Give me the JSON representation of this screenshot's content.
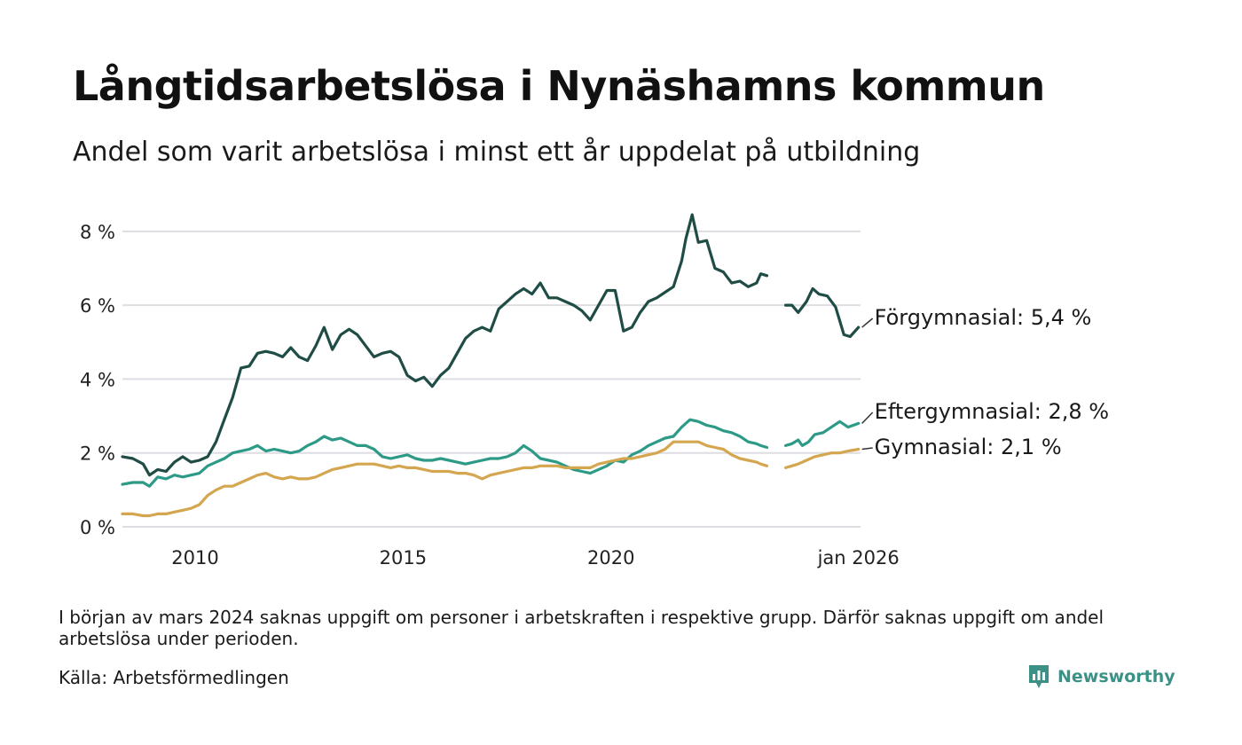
{
  "chart_data": {
    "type": "line",
    "title": "Långtidsarbetslösa i Nynäshamns kommun",
    "subtitle": "Andel som varit arbetslösa i minst ett år uppdelat på utbildning",
    "xlabel": "",
    "ylabel": "",
    "x_unit": "year",
    "x_range": [
      2008.25,
      2026.0
    ],
    "ylim": [
      0,
      8.5
    ],
    "y_ticks": [
      {
        "value": 0,
        "label": "0 %"
      },
      {
        "value": 2,
        "label": "2 %"
      },
      {
        "value": 4,
        "label": "4 %"
      },
      {
        "value": 6,
        "label": "6 %"
      },
      {
        "value": 8,
        "label": "8 %"
      }
    ],
    "x_ticks": [
      {
        "value": 2010,
        "label": "2010"
      },
      {
        "value": 2015,
        "label": "2015"
      },
      {
        "value": 2020,
        "label": "2020"
      },
      {
        "value": 2025.95,
        "label": "jan 2026"
      }
    ],
    "grid": true,
    "legend": "end labels at right",
    "gap_note": "missing data early 2024",
    "series": [
      {
        "name": "Förgymnasial",
        "end_label": "Förgymnasial: 5,4 %",
        "color": "#1f4d46",
        "points": [
          [
            2008.25,
            1.9
          ],
          [
            2008.5,
            1.85
          ],
          [
            2008.75,
            1.7
          ],
          [
            2008.9,
            1.4
          ],
          [
            2009.1,
            1.55
          ],
          [
            2009.3,
            1.5
          ],
          [
            2009.5,
            1.75
          ],
          [
            2009.7,
            1.9
          ],
          [
            2009.9,
            1.75
          ],
          [
            2010.1,
            1.8
          ],
          [
            2010.3,
            1.9
          ],
          [
            2010.5,
            2.3
          ],
          [
            2010.7,
            2.9
          ],
          [
            2010.9,
            3.5
          ],
          [
            2011.1,
            4.3
          ],
          [
            2011.3,
            4.35
          ],
          [
            2011.5,
            4.7
          ],
          [
            2011.7,
            4.75
          ],
          [
            2011.9,
            4.7
          ],
          [
            2012.1,
            4.6
          ],
          [
            2012.3,
            4.85
          ],
          [
            2012.5,
            4.6
          ],
          [
            2012.7,
            4.5
          ],
          [
            2012.9,
            4.9
          ],
          [
            2013.1,
            5.4
          ],
          [
            2013.3,
            4.8
          ],
          [
            2013.5,
            5.2
          ],
          [
            2013.7,
            5.35
          ],
          [
            2013.9,
            5.2
          ],
          [
            2014.1,
            4.9
          ],
          [
            2014.3,
            4.6
          ],
          [
            2014.5,
            4.7
          ],
          [
            2014.7,
            4.75
          ],
          [
            2014.9,
            4.6
          ],
          [
            2015.1,
            4.1
          ],
          [
            2015.3,
            3.95
          ],
          [
            2015.5,
            4.05
          ],
          [
            2015.7,
            3.8
          ],
          [
            2015.9,
            4.1
          ],
          [
            2016.1,
            4.3
          ],
          [
            2016.3,
            4.7
          ],
          [
            2016.5,
            5.1
          ],
          [
            2016.7,
            5.3
          ],
          [
            2016.9,
            5.4
          ],
          [
            2017.1,
            5.3
          ],
          [
            2017.3,
            5.9
          ],
          [
            2017.5,
            6.1
          ],
          [
            2017.7,
            6.3
          ],
          [
            2017.9,
            6.45
          ],
          [
            2018.1,
            6.3
          ],
          [
            2018.3,
            6.6
          ],
          [
            2018.5,
            6.2
          ],
          [
            2018.7,
            6.2
          ],
          [
            2018.9,
            6.1
          ],
          [
            2019.1,
            6.0
          ],
          [
            2019.3,
            5.85
          ],
          [
            2019.5,
            5.6
          ],
          [
            2019.7,
            6.0
          ],
          [
            2019.9,
            6.4
          ],
          [
            2020.1,
            6.4
          ],
          [
            2020.3,
            5.3
          ],
          [
            2020.5,
            5.4
          ],
          [
            2020.7,
            5.8
          ],
          [
            2020.9,
            6.1
          ],
          [
            2021.1,
            6.2
          ],
          [
            2021.3,
            6.35
          ],
          [
            2021.5,
            6.5
          ],
          [
            2021.7,
            7.2
          ],
          [
            2021.8,
            7.8
          ],
          [
            2021.95,
            8.45
          ],
          [
            2022.1,
            7.7
          ],
          [
            2022.3,
            7.75
          ],
          [
            2022.5,
            7.0
          ],
          [
            2022.7,
            6.9
          ],
          [
            2022.9,
            6.6
          ],
          [
            2023.1,
            6.65
          ],
          [
            2023.3,
            6.5
          ],
          [
            2023.5,
            6.6
          ],
          [
            2023.6,
            6.85
          ],
          [
            2023.75,
            6.8
          ],
          null,
          [
            2024.2,
            6.0
          ],
          [
            2024.35,
            6.0
          ],
          [
            2024.5,
            5.8
          ],
          [
            2024.7,
            6.1
          ],
          [
            2024.85,
            6.45
          ],
          [
            2025.0,
            6.3
          ],
          [
            2025.2,
            6.25
          ],
          [
            2025.4,
            5.95
          ],
          [
            2025.6,
            5.2
          ],
          [
            2025.75,
            5.15
          ],
          [
            2025.95,
            5.4
          ]
        ]
      },
      {
        "name": "Eftergymnasial",
        "end_label": "Eftergymnasial: 2,8 %",
        "color": "#2d9a88",
        "points": [
          [
            2008.25,
            1.15
          ],
          [
            2008.5,
            1.2
          ],
          [
            2008.75,
            1.2
          ],
          [
            2008.9,
            1.1
          ],
          [
            2009.1,
            1.35
          ],
          [
            2009.3,
            1.3
          ],
          [
            2009.5,
            1.4
          ],
          [
            2009.7,
            1.35
          ],
          [
            2009.9,
            1.4
          ],
          [
            2010.1,
            1.45
          ],
          [
            2010.3,
            1.65
          ],
          [
            2010.5,
            1.75
          ],
          [
            2010.7,
            1.85
          ],
          [
            2010.9,
            2.0
          ],
          [
            2011.1,
            2.05
          ],
          [
            2011.3,
            2.1
          ],
          [
            2011.5,
            2.2
          ],
          [
            2011.7,
            2.05
          ],
          [
            2011.9,
            2.1
          ],
          [
            2012.1,
            2.05
          ],
          [
            2012.3,
            2.0
          ],
          [
            2012.5,
            2.05
          ],
          [
            2012.7,
            2.2
          ],
          [
            2012.9,
            2.3
          ],
          [
            2013.1,
            2.45
          ],
          [
            2013.3,
            2.35
          ],
          [
            2013.5,
            2.4
          ],
          [
            2013.7,
            2.3
          ],
          [
            2013.9,
            2.2
          ],
          [
            2014.1,
            2.2
          ],
          [
            2014.3,
            2.1
          ],
          [
            2014.5,
            1.9
          ],
          [
            2014.7,
            1.85
          ],
          [
            2014.9,
            1.9
          ],
          [
            2015.1,
            1.95
          ],
          [
            2015.3,
            1.85
          ],
          [
            2015.5,
            1.8
          ],
          [
            2015.7,
            1.8
          ],
          [
            2015.9,
            1.85
          ],
          [
            2016.1,
            1.8
          ],
          [
            2016.3,
            1.75
          ],
          [
            2016.5,
            1.7
          ],
          [
            2016.7,
            1.75
          ],
          [
            2016.9,
            1.8
          ],
          [
            2017.1,
            1.85
          ],
          [
            2017.3,
            1.85
          ],
          [
            2017.5,
            1.9
          ],
          [
            2017.7,
            2.0
          ],
          [
            2017.9,
            2.2
          ],
          [
            2018.1,
            2.05
          ],
          [
            2018.3,
            1.85
          ],
          [
            2018.5,
            1.8
          ],
          [
            2018.7,
            1.75
          ],
          [
            2018.9,
            1.65
          ],
          [
            2019.1,
            1.55
          ],
          [
            2019.3,
            1.5
          ],
          [
            2019.5,
            1.45
          ],
          [
            2019.7,
            1.55
          ],
          [
            2019.9,
            1.65
          ],
          [
            2020.1,
            1.8
          ],
          [
            2020.3,
            1.75
          ],
          [
            2020.5,
            1.95
          ],
          [
            2020.7,
            2.05
          ],
          [
            2020.9,
            2.2
          ],
          [
            2021.1,
            2.3
          ],
          [
            2021.3,
            2.4
          ],
          [
            2021.5,
            2.45
          ],
          [
            2021.7,
            2.7
          ],
          [
            2021.9,
            2.9
          ],
          [
            2022.1,
            2.85
          ],
          [
            2022.3,
            2.75
          ],
          [
            2022.5,
            2.7
          ],
          [
            2022.7,
            2.6
          ],
          [
            2022.9,
            2.55
          ],
          [
            2023.1,
            2.45
          ],
          [
            2023.3,
            2.3
          ],
          [
            2023.5,
            2.25
          ],
          [
            2023.6,
            2.2
          ],
          [
            2023.75,
            2.15
          ],
          null,
          [
            2024.2,
            2.2
          ],
          [
            2024.35,
            2.25
          ],
          [
            2024.5,
            2.35
          ],
          [
            2024.6,
            2.2
          ],
          [
            2024.75,
            2.3
          ],
          [
            2024.9,
            2.5
          ],
          [
            2025.1,
            2.55
          ],
          [
            2025.3,
            2.7
          ],
          [
            2025.5,
            2.85
          ],
          [
            2025.7,
            2.7
          ],
          [
            2025.95,
            2.8
          ]
        ]
      },
      {
        "name": "Gymnasial",
        "end_label": "Gymnasial: 2,1 %",
        "color": "#d4a64f",
        "points": [
          [
            2008.25,
            0.35
          ],
          [
            2008.5,
            0.35
          ],
          [
            2008.75,
            0.3
          ],
          [
            2008.9,
            0.3
          ],
          [
            2009.1,
            0.35
          ],
          [
            2009.3,
            0.35
          ],
          [
            2009.5,
            0.4
          ],
          [
            2009.7,
            0.45
          ],
          [
            2009.9,
            0.5
          ],
          [
            2010.1,
            0.6
          ],
          [
            2010.3,
            0.85
          ],
          [
            2010.5,
            1.0
          ],
          [
            2010.7,
            1.1
          ],
          [
            2010.9,
            1.1
          ],
          [
            2011.1,
            1.2
          ],
          [
            2011.3,
            1.3
          ],
          [
            2011.5,
            1.4
          ],
          [
            2011.7,
            1.45
          ],
          [
            2011.9,
            1.35
          ],
          [
            2012.1,
            1.3
          ],
          [
            2012.3,
            1.35
          ],
          [
            2012.5,
            1.3
          ],
          [
            2012.7,
            1.3
          ],
          [
            2012.9,
            1.35
          ],
          [
            2013.1,
            1.45
          ],
          [
            2013.3,
            1.55
          ],
          [
            2013.5,
            1.6
          ],
          [
            2013.7,
            1.65
          ],
          [
            2013.9,
            1.7
          ],
          [
            2014.1,
            1.7
          ],
          [
            2014.3,
            1.7
          ],
          [
            2014.5,
            1.65
          ],
          [
            2014.7,
            1.6
          ],
          [
            2014.9,
            1.65
          ],
          [
            2015.1,
            1.6
          ],
          [
            2015.3,
            1.6
          ],
          [
            2015.5,
            1.55
          ],
          [
            2015.7,
            1.5
          ],
          [
            2015.9,
            1.5
          ],
          [
            2016.1,
            1.5
          ],
          [
            2016.3,
            1.45
          ],
          [
            2016.5,
            1.45
          ],
          [
            2016.7,
            1.4
          ],
          [
            2016.9,
            1.3
          ],
          [
            2017.1,
            1.4
          ],
          [
            2017.3,
            1.45
          ],
          [
            2017.5,
            1.5
          ],
          [
            2017.7,
            1.55
          ],
          [
            2017.9,
            1.6
          ],
          [
            2018.1,
            1.6
          ],
          [
            2018.3,
            1.65
          ],
          [
            2018.5,
            1.65
          ],
          [
            2018.7,
            1.65
          ],
          [
            2018.9,
            1.6
          ],
          [
            2019.1,
            1.6
          ],
          [
            2019.3,
            1.6
          ],
          [
            2019.5,
            1.6
          ],
          [
            2019.7,
            1.7
          ],
          [
            2019.9,
            1.75
          ],
          [
            2020.1,
            1.8
          ],
          [
            2020.3,
            1.85
          ],
          [
            2020.5,
            1.85
          ],
          [
            2020.7,
            1.9
          ],
          [
            2020.9,
            1.95
          ],
          [
            2021.1,
            2.0
          ],
          [
            2021.3,
            2.1
          ],
          [
            2021.5,
            2.3
          ],
          [
            2021.7,
            2.3
          ],
          [
            2021.9,
            2.3
          ],
          [
            2022.1,
            2.3
          ],
          [
            2022.3,
            2.2
          ],
          [
            2022.5,
            2.15
          ],
          [
            2022.7,
            2.1
          ],
          [
            2022.9,
            1.95
          ],
          [
            2023.1,
            1.85
          ],
          [
            2023.3,
            1.8
          ],
          [
            2023.5,
            1.75
          ],
          [
            2023.6,
            1.7
          ],
          [
            2023.75,
            1.65
          ],
          null,
          [
            2024.2,
            1.6
          ],
          [
            2024.35,
            1.65
          ],
          [
            2024.5,
            1.7
          ],
          [
            2024.7,
            1.8
          ],
          [
            2024.9,
            1.9
          ],
          [
            2025.1,
            1.95
          ],
          [
            2025.3,
            2.0
          ],
          [
            2025.5,
            2.0
          ],
          [
            2025.7,
            2.05
          ],
          [
            2025.95,
            2.1
          ]
        ]
      }
    ]
  },
  "note": "I början av mars 2024 saknas uppgift om personer i arbetskraften i respektive grupp. Därför saknas uppgift om andel arbetslösa under perioden.",
  "source": "Källa: Arbetsförmedlingen",
  "brand": {
    "name": "Newsworthy",
    "color": "#3b9186"
  },
  "colors": {
    "grid": "#dddde3",
    "text": "#111111"
  }
}
